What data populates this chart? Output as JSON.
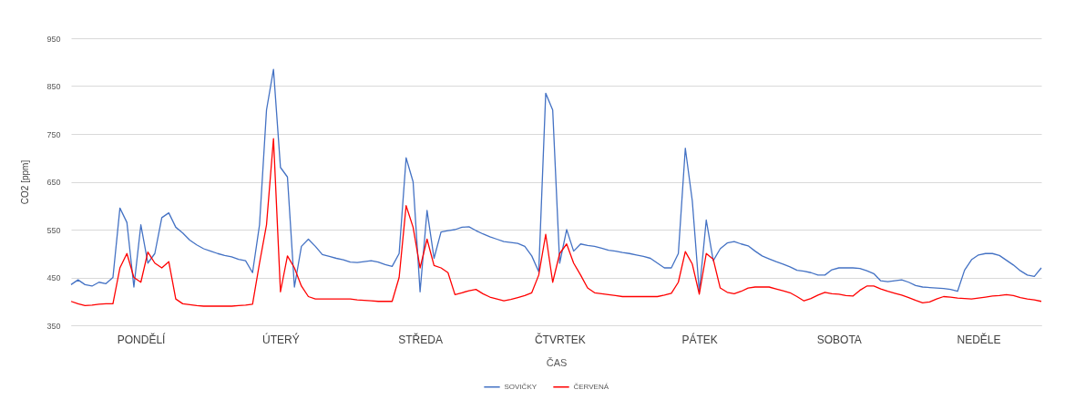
{
  "chart_data": {
    "type": "line",
    "xlabel": "ČAS",
    "ylabel": "CO2 [ppm]",
    "categories": [
      null,
      null,
      null,
      null,
      null,
      null,
      null,
      null,
      null,
      null,
      "PONDĚLÍ",
      null,
      null,
      null,
      null,
      null,
      null,
      null,
      null,
      null,
      null,
      null,
      null,
      null,
      null,
      null,
      null,
      null,
      null,
      null,
      "ÚTERÝ",
      null,
      null,
      null,
      null,
      null,
      null,
      null,
      null,
      null,
      null,
      null,
      null,
      null,
      null,
      null,
      null,
      null,
      null,
      null,
      "STŘEDA",
      null,
      null,
      null,
      null,
      null,
      null,
      null,
      null,
      null,
      null,
      null,
      null,
      null,
      null,
      null,
      null,
      null,
      null,
      null,
      "ČTVRTEK",
      null,
      null,
      null,
      null,
      null,
      null,
      null,
      null,
      null,
      null,
      null,
      null,
      null,
      null,
      null,
      null,
      null,
      null,
      null,
      "PÁTEK",
      null,
      null,
      null,
      null,
      null,
      null,
      null,
      null,
      null,
      null,
      null,
      null,
      null,
      null,
      null,
      null,
      null,
      null,
      null,
      "SOBOTA",
      null,
      null,
      null,
      null,
      null,
      null,
      null,
      null,
      null,
      null,
      null,
      null,
      null,
      null,
      null,
      null,
      null,
      null,
      null,
      "NEDĚLE",
      null,
      null,
      null,
      null,
      null,
      null,
      null,
      null,
      null
    ],
    "ylim": [
      350,
      950
    ],
    "yticks": [
      350,
      450,
      550,
      650,
      750,
      850,
      950
    ],
    "grid": "y",
    "legend": "bottom",
    "line_style": "solid",
    "series": [
      {
        "name": "SOVIČKY",
        "color": "#4472c4",
        "values": [
          435,
          445,
          435,
          432,
          440,
          437,
          450,
          595,
          565,
          430,
          560,
          480,
          500,
          575,
          585,
          555,
          543,
          528,
          518,
          510,
          505,
          500,
          496,
          493,
          488,
          485,
          460,
          560,
          800,
          885,
          680,
          660,
          430,
          515,
          530,
          515,
          498,
          494,
          490,
          487,
          482,
          481,
          483,
          485,
          482,
          477,
          473,
          500,
          700,
          650,
          420,
          590,
          490,
          545,
          548,
          550,
          555,
          556,
          548,
          541,
          535,
          530,
          525,
          523,
          521,
          515,
          495,
          462,
          835,
          800,
          480,
          550,
          505,
          520,
          517,
          515,
          511,
          507,
          505,
          502,
          500,
          497,
          494,
          490,
          480,
          470,
          470,
          500,
          720,
          610,
          420,
          570,
          485,
          510,
          522,
          525,
          520,
          516,
          505,
          495,
          489,
          483,
          478,
          472,
          465,
          463,
          460,
          455,
          455,
          466,
          470,
          470,
          470,
          469,
          464,
          458,
          443,
          441,
          443,
          445,
          440,
          433,
          430,
          429,
          428,
          427,
          425,
          421,
          465,
          487,
          497,
          500,
          500,
          496,
          486,
          476,
          464,
          455,
          452,
          470
        ]
      },
      {
        "name": "ČERVENÁ",
        "color": "#ff0000",
        "values": [
          400,
          395,
          391,
          392,
          394,
          395,
          395,
          470,
          500,
          450,
          440,
          503,
          480,
          470,
          483,
          405,
          395,
          393,
          391,
          390,
          390,
          390,
          390,
          390,
          391,
          392,
          394,
          480,
          560,
          740,
          420,
          495,
          470,
          432,
          410,
          405,
          405,
          405,
          405,
          405,
          405,
          403,
          402,
          401,
          400,
          400,
          400,
          450,
          600,
          555,
          470,
          530,
          475,
          470,
          460,
          414,
          418,
          422,
          425,
          416,
          409,
          405,
          401,
          404,
          408,
          412,
          418,
          455,
          540,
          440,
          500,
          520,
          480,
          455,
          428,
          418,
          416,
          414,
          412,
          410,
          410,
          410,
          410,
          410,
          410,
          413,
          417,
          440,
          504,
          478,
          415,
          500,
          488,
          428,
          419,
          416,
          421,
          428,
          430,
          430,
          430,
          426,
          422,
          418,
          410,
          401,
          406,
          413,
          419,
          416,
          415,
          412,
          411,
          423,
          432,
          432,
          426,
          421,
          417,
          413,
          408,
          402,
          397,
          399,
          405,
          410,
          409,
          407,
          406,
          405,
          407,
          409,
          411,
          412,
          414,
          412,
          408,
          405,
          403,
          400
        ]
      }
    ]
  }
}
